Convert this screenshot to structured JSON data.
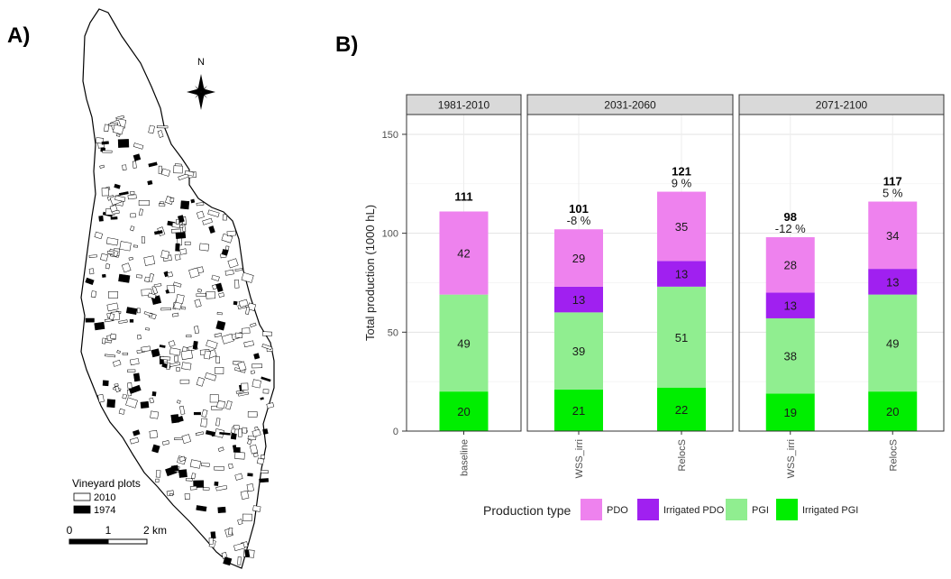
{
  "panels": {
    "a_label": "A)",
    "b_label": "B)"
  },
  "map": {
    "north_label": "N",
    "legend": {
      "title": "Vineyard plots",
      "items": [
        {
          "label": "2010",
          "fill": "#ffffff"
        },
        {
          "label": "1974",
          "fill": "#000000"
        }
      ]
    },
    "scalebar": {
      "labels": [
        "0",
        "1",
        "2 km"
      ]
    }
  },
  "chart_data": {
    "type": "bar",
    "stacked": true,
    "ylabel": "Total production (1000 hL)",
    "ylim": [
      0,
      160
    ],
    "yticks": [
      0,
      50,
      100,
      150
    ],
    "facets": [
      {
        "label": "1981-2010",
        "bars": [
          {
            "category": "baseline",
            "values": [
              20,
              49,
              0,
              42
            ],
            "total": "111",
            "change": ""
          }
        ]
      },
      {
        "label": "2031-2060",
        "bars": [
          {
            "category": "WSS_irri",
            "values": [
              21,
              39,
              13,
              29
            ],
            "total": "101",
            "change": "-8 %"
          },
          {
            "category": "RelocS",
            "values": [
              22,
              51,
              13,
              35
            ],
            "total": "121",
            "change": "9 %"
          }
        ]
      },
      {
        "label": "2071-2100",
        "bars": [
          {
            "category": "WSS_irri",
            "values": [
              19,
              38,
              13,
              28
            ],
            "total": "98",
            "change": "-12 %"
          },
          {
            "category": "RelocS",
            "values": [
              20,
              49,
              13,
              34
            ],
            "total": "117",
            "change": "5 %"
          }
        ]
      }
    ],
    "stack_order": [
      "Irrigated PGI",
      "PGI",
      "Irrigated PDO",
      "PDO"
    ],
    "legend": {
      "title": "Production type",
      "position": "bottom",
      "items": [
        {
          "name": "PDO",
          "color": "#ee82ee"
        },
        {
          "name": "Irrigated PDO",
          "color": "#a020f0"
        },
        {
          "name": "PGI",
          "color": "#90ee90"
        },
        {
          "name": "Irrigated PGI",
          "color": "#00ee00"
        }
      ]
    },
    "grid": true
  }
}
